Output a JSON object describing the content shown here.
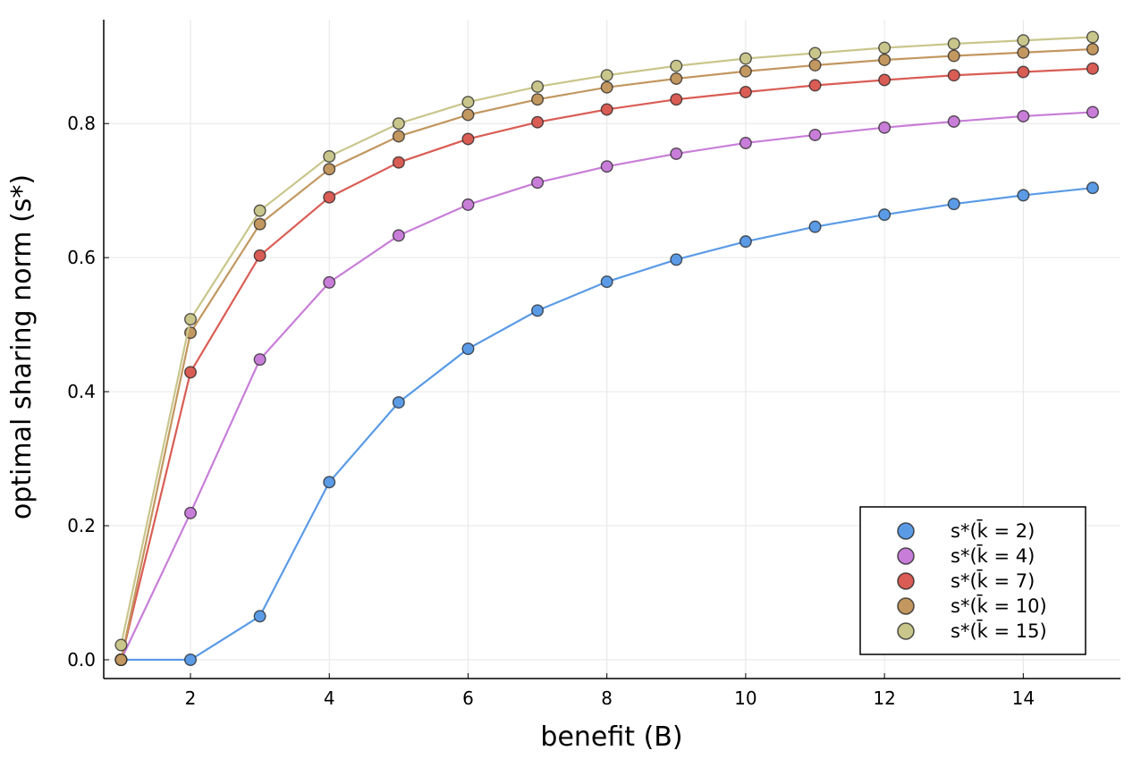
{
  "chart_data": {
    "type": "line",
    "title": "",
    "xlabel": "benefit (B)",
    "ylabel": "optimal sharing norm (s*)",
    "xlim": [
      0.75,
      15.4
    ],
    "ylim": [
      -0.028,
      0.955
    ],
    "xticks": [
      2,
      4,
      6,
      8,
      10,
      12,
      14
    ],
    "xtick_labels": [
      "2",
      "4",
      "6",
      "8",
      "10",
      "12",
      "14"
    ],
    "yticks": [
      0.0,
      0.2,
      0.4,
      0.6,
      0.8
    ],
    "ytick_labels": [
      "0.0",
      "0.2",
      "0.4",
      "0.6",
      "0.8"
    ],
    "grid": true,
    "legend_position": "bottom-right",
    "markers": true,
    "x": [
      1,
      2,
      3,
      4,
      5,
      6,
      7,
      8,
      9,
      10,
      11,
      12,
      13,
      14,
      15
    ],
    "series": [
      {
        "name": "s*(k̄ = 2)",
        "color": "#5b9be6",
        "values": [
          0.0,
          0.0,
          0.065,
          0.265,
          0.384,
          0.464,
          0.521,
          0.564,
          0.597,
          0.624,
          0.646,
          0.664,
          0.68,
          0.693,
          0.704
        ]
      },
      {
        "name": "s*(k̄ = 4)",
        "color": "#c87ed8",
        "values": [
          0.0,
          0.219,
          0.448,
          0.563,
          0.633,
          0.679,
          0.712,
          0.736,
          0.755,
          0.771,
          0.783,
          0.794,
          0.803,
          0.811,
          0.817
        ]
      },
      {
        "name": "s*(k̄ = 7)",
        "color": "#d95d55",
        "values": [
          0.0,
          0.429,
          0.603,
          0.69,
          0.742,
          0.777,
          0.802,
          0.821,
          0.836,
          0.847,
          0.857,
          0.865,
          0.872,
          0.877,
          0.882
        ]
      },
      {
        "name": "s*(k̄ = 10)",
        "color": "#c29760",
        "values": [
          0.0,
          0.488,
          0.65,
          0.732,
          0.781,
          0.813,
          0.836,
          0.854,
          0.867,
          0.878,
          0.887,
          0.895,
          0.901,
          0.906,
          0.911
        ]
      },
      {
        "name": "s*(k̄ = 15)",
        "color": "#c9c68c",
        "values": [
          0.022,
          0.508,
          0.67,
          0.751,
          0.8,
          0.832,
          0.855,
          0.872,
          0.886,
          0.897,
          0.905,
          0.913,
          0.919,
          0.924,
          0.929
        ]
      }
    ]
  }
}
